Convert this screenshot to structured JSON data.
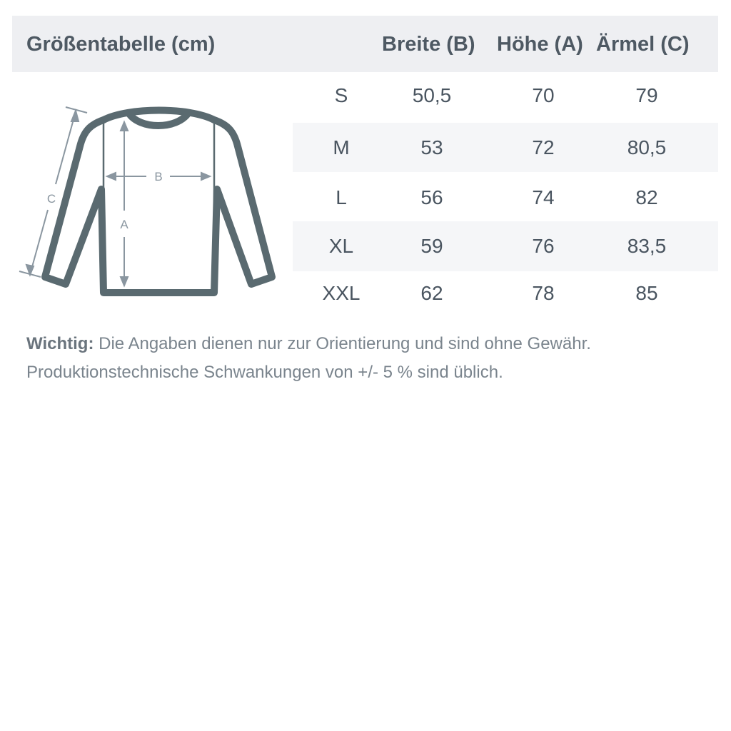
{
  "header": {
    "title": "Größentabelle (cm)",
    "col_breite": "Breite (B)",
    "col_hoehe": "Höhe (A)",
    "col_aermel": "Ärmel (C)"
  },
  "rows": [
    {
      "size": "S",
      "breite": "50,5",
      "hoehe": "70",
      "aermel": "79"
    },
    {
      "size": "M",
      "breite": "53",
      "hoehe": "72",
      "aermel": "80,5"
    },
    {
      "size": "L",
      "breite": "56",
      "hoehe": "74",
      "aermel": "82"
    },
    {
      "size": "XL",
      "breite": "59",
      "hoehe": "76",
      "aermel": "83,5"
    },
    {
      "size": "XXL",
      "breite": "62",
      "hoehe": "78",
      "aermel": "85"
    }
  ],
  "diagram": {
    "label_a": "A",
    "label_b": "B",
    "label_c": "C",
    "icon": "sweater-measurement-icon"
  },
  "note": {
    "bold": "Wichtig:",
    "line1": " Die Angaben dienen nur zur Orientierung und sind ohne Gewähr.",
    "line2": "Produktionstechnische Schwankungen von +/- 5 % sind üblich."
  },
  "colors": {
    "outline": "#5a6a70",
    "arrows": "#8a96a0",
    "header_bg": "#eeeff2",
    "stripe_bg": "#f5f6f8"
  }
}
